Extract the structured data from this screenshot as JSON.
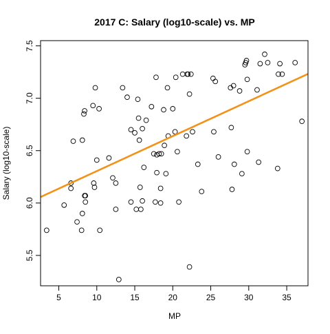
{
  "chart_data": {
    "type": "scatter",
    "title": "2017 C: Salary (log10-scale) vs. MP",
    "xlabel": "MP",
    "ylabel": "Salary (log10-scale)",
    "xlim": [
      2.6,
      37.8
    ],
    "ylim": [
      5.21,
      7.55
    ],
    "xticks": [
      5,
      10,
      15,
      20,
      25,
      30,
      35
    ],
    "yticks": [
      5.5,
      6.0,
      6.5,
      7.0,
      7.5
    ],
    "yticklabels": [
      "5.5",
      "6.0",
      "6.5",
      "7.0",
      "7.5"
    ],
    "grid": false,
    "legend": "none",
    "point_color": "#000000",
    "trend_color": "#f39218",
    "trendline": {
      "intercept": 5.971,
      "slope": 0.03337
    },
    "points": [
      [
        3.4,
        5.74
      ],
      [
        5.7,
        5.98
      ],
      [
        6.6,
        6.19
      ],
      [
        6.6,
        6.14
      ],
      [
        6.9,
        6.59
      ],
      [
        7.4,
        5.82
      ],
      [
        8.0,
        5.74
      ],
      [
        8.1,
        5.9
      ],
      [
        8.1,
        6.6
      ],
      [
        8.3,
        6.85
      ],
      [
        8.4,
        6.88
      ],
      [
        8.4,
        6.07
      ],
      [
        8.5,
        6.07
      ],
      [
        8.5,
        6.01
      ],
      [
        9.5,
        6.93
      ],
      [
        9.6,
        6.19
      ],
      [
        9.7,
        6.15
      ],
      [
        9.8,
        7.1
      ],
      [
        10.0,
        6.41
      ],
      [
        10.3,
        6.9
      ],
      [
        10.4,
        5.74
      ],
      [
        11.6,
        6.43
      ],
      [
        12.1,
        6.24
      ],
      [
        12.5,
        6.19
      ],
      [
        12.5,
        5.94
      ],
      [
        12.9,
        5.27
      ],
      [
        13.4,
        7.1
      ],
      [
        14.0,
        7.01
      ],
      [
        14.5,
        6.7
      ],
      [
        14.5,
        6.01
      ],
      [
        15.0,
        6.67
      ],
      [
        15.2,
        5.94
      ],
      [
        15.4,
        6.99
      ],
      [
        15.5,
        6.81
      ],
      [
        15.6,
        6.6
      ],
      [
        15.7,
        6.15
      ],
      [
        15.8,
        5.94
      ],
      [
        16.0,
        6.71
      ],
      [
        16.0,
        6.02
      ],
      [
        16.2,
        6.34
      ],
      [
        16.5,
        6.79
      ],
      [
        17.2,
        6.92
      ],
      [
        17.5,
        6.47
      ],
      [
        17.7,
        6.01
      ],
      [
        17.8,
        7.2
      ],
      [
        17.9,
        6.29
      ],
      [
        17.9,
        6.46
      ],
      [
        18.2,
        6.47
      ],
      [
        18.4,
        6.14
      ],
      [
        18.4,
        6.0
      ],
      [
        18.5,
        6.47
      ],
      [
        18.8,
        6.89
      ],
      [
        18.9,
        6.55
      ],
      [
        19.1,
        6.28
      ],
      [
        19.3,
        7.1
      ],
      [
        19.4,
        6.64
      ],
      [
        20.0,
        6.9
      ],
      [
        20.3,
        6.68
      ],
      [
        20.4,
        7.2
      ],
      [
        20.6,
        6.49
      ],
      [
        20.8,
        6.01
      ],
      [
        21.3,
        7.23
      ],
      [
        21.8,
        6.64
      ],
      [
        21.9,
        7.23
      ],
      [
        22.0,
        7.23
      ],
      [
        22.2,
        7.04
      ],
      [
        22.2,
        5.39
      ],
      [
        22.4,
        7.23
      ],
      [
        22.6,
        6.68
      ],
      [
        23.3,
        6.37
      ],
      [
        23.8,
        6.11
      ],
      [
        25.3,
        7.19
      ],
      [
        25.4,
        6.68
      ],
      [
        25.6,
        7.16
      ],
      [
        26.0,
        6.44
      ],
      [
        27.6,
        7.1
      ],
      [
        27.7,
        6.72
      ],
      [
        27.8,
        6.13
      ],
      [
        28.0,
        7.12
      ],
      [
        28.1,
        6.37
      ],
      [
        28.8,
        7.07
      ],
      [
        29.1,
        6.28
      ],
      [
        29.5,
        7.32
      ],
      [
        29.6,
        7.34
      ],
      [
        29.7,
        7.36
      ],
      [
        29.8,
        7.18
      ],
      [
        29.8,
        6.49
      ],
      [
        31.1,
        7.08
      ],
      [
        31.3,
        6.39
      ],
      [
        31.5,
        7.33
      ],
      [
        32.1,
        7.42
      ],
      [
        32.5,
        7.34
      ],
      [
        33.8,
        6.33
      ],
      [
        33.9,
        7.23
      ],
      [
        34.1,
        7.33
      ],
      [
        34.4,
        7.23
      ],
      [
        36.1,
        7.34
      ],
      [
        37.0,
        6.78
      ]
    ]
  }
}
